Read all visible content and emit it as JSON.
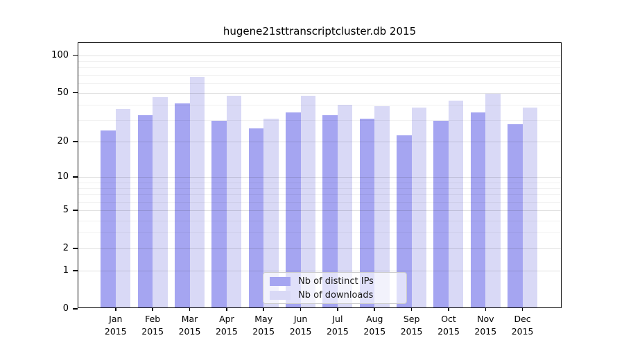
{
  "chart_data": {
    "type": "bar",
    "title": "hugene21sttranscriptcluster.db 2015",
    "categories": [
      "Jan 2015",
      "Feb 2015",
      "Mar 2015",
      "Apr 2015",
      "May 2015",
      "Jun 2015",
      "Jul 2015",
      "Aug 2015",
      "Sep 2015",
      "Oct 2015",
      "Nov 2015",
      "Dec 2015"
    ],
    "series": [
      {
        "name": "Nb of distinct IPs",
        "color": "#a5a5f1",
        "values": [
          24,
          32,
          40,
          29,
          25,
          34,
          32,
          30,
          22,
          29,
          34,
          27
        ]
      },
      {
        "name": "Nb of downloads",
        "color": "#d9d9f6",
        "values": [
          36,
          45,
          65,
          46,
          30,
          46,
          39,
          38,
          37,
          42,
          48,
          37
        ]
      }
    ],
    "yscale": "log10(value+1)",
    "y_tick_labels": [
      100,
      50,
      20,
      10,
      5,
      2,
      1,
      0
    ],
    "y_minor_gridlines": [
      3,
      4,
      6,
      7,
      8,
      9,
      30,
      40,
      60,
      70,
      80,
      90
    ],
    "ylim": [
      0,
      126
    ],
    "grid": true,
    "legend_position": "lower center"
  }
}
